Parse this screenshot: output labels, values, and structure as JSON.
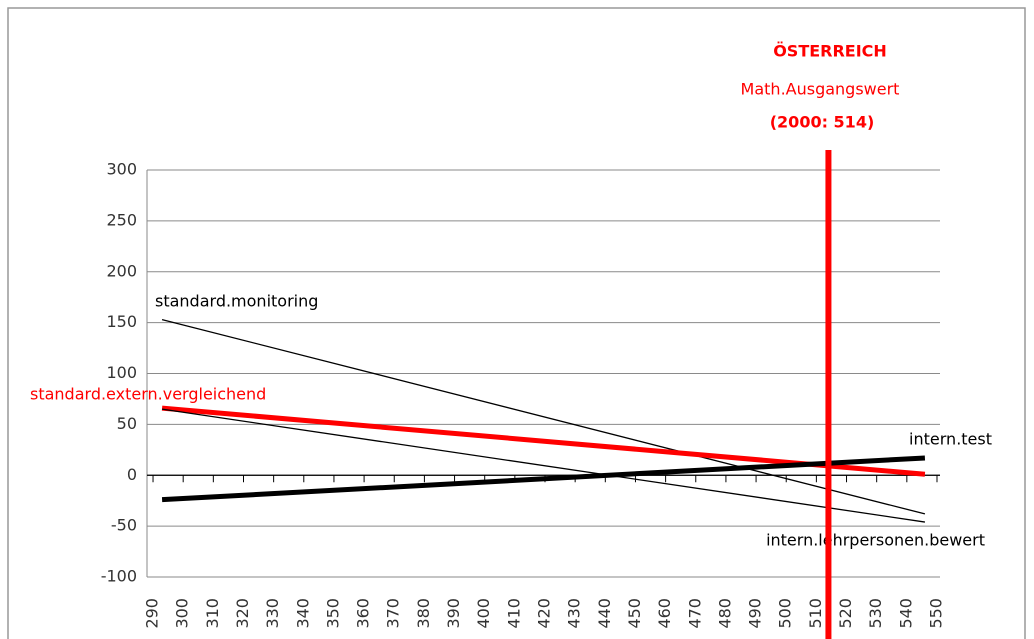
{
  "chart_data": {
    "type": "line",
    "annotations": [
      "ÖSTERREICH",
      "Math.Ausgangswert",
      "(2000: 514)"
    ],
    "marker": {
      "x": 514,
      "color": "#ff0000"
    },
    "series": [
      {
        "name": "standard.monitoring",
        "color": "#000000",
        "line_width": 1.3,
        "x": [
          293,
          546
        ],
        "values": [
          153,
          -38
        ]
      },
      {
        "name": "standard.extern.vergleichend",
        "color": "#ff0000",
        "line_width": 5,
        "x": [
          293,
          546
        ],
        "values": [
          66,
          1
        ]
      },
      {
        "name": "intern.test",
        "color": "#000000",
        "line_width": 5,
        "x": [
          293,
          546
        ],
        "values": [
          -24,
          17
        ]
      },
      {
        "name": "intern.lehrpersonen.bewert",
        "color": "#000000",
        "line_width": 1.3,
        "x": [
          293,
          546
        ],
        "values": [
          65,
          -46
        ]
      }
    ],
    "xlim": [
      288,
      551
    ],
    "xticks": [
      290,
      300,
      310,
      320,
      330,
      340,
      350,
      360,
      370,
      380,
      390,
      400,
      410,
      420,
      430,
      440,
      450,
      460,
      470,
      480,
      490,
      500,
      510,
      520,
      530,
      540,
      550
    ],
    "ylim": [
      -100,
      300
    ],
    "yticks": [
      -100,
      -50,
      0,
      50,
      100,
      150,
      200,
      250,
      300
    ],
    "grid": true
  }
}
